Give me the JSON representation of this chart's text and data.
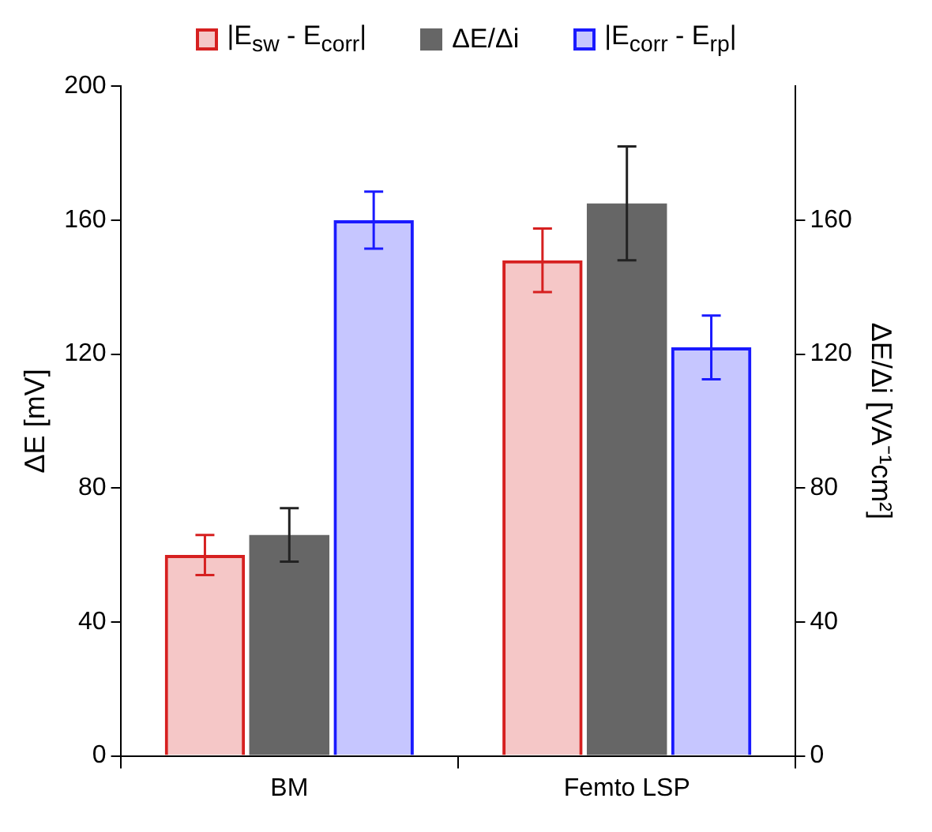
{
  "chart_data": {
    "type": "bar",
    "categories": [
      "BM",
      "Femto LSP"
    ],
    "series": [
      {
        "name": "|E$_{sw}$ - E$_{corr}$|",
        "color": "#d62020",
        "values": [
          60,
          148
        ],
        "errors": [
          6,
          9.5
        ]
      },
      {
        "name": "ΔE/Δi",
        "color": "#666666",
        "values": [
          66,
          165
        ],
        "errors": [
          8,
          17
        ],
        "axis": "y2"
      },
      {
        "name": "|E$_{corr}$ - E$_{rp}$|",
        "color": "#1a1aff",
        "values": [
          160,
          122
        ],
        "errors": [
          8.5,
          9.5
        ]
      }
    ],
    "ylabel": "ΔE [mV]",
    "y2label": "ΔE/Δi [VA⁻¹cm²]",
    "ylim": [
      0,
      200
    ],
    "yticks": [
      0,
      40,
      80,
      120,
      160,
      200
    ],
    "y2lim": [
      0,
      200
    ],
    "y2ticks": [
      0,
      40,
      80,
      120,
      160
    ],
    "grid": false,
    "legend": "top"
  }
}
